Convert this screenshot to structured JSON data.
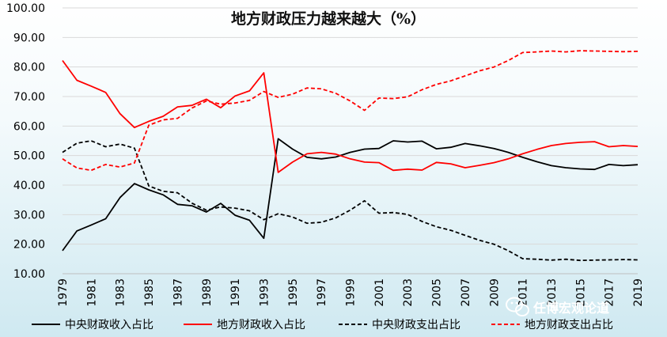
{
  "chart_data": {
    "type": "line",
    "title": "地方财政压力越来越大（%）",
    "ylim": [
      10,
      100
    ],
    "yticks": [
      "10.00",
      "20.00",
      "30.00",
      "40.00",
      "50.00",
      "60.00",
      "70.00",
      "80.00",
      "90.00",
      "100.00"
    ],
    "x": [
      1979,
      1980,
      1981,
      1982,
      1983,
      1984,
      1985,
      1986,
      1987,
      1988,
      1989,
      1990,
      1991,
      1992,
      1993,
      1994,
      1995,
      1996,
      1997,
      1998,
      1999,
      2000,
      2001,
      2002,
      2003,
      2004,
      2005,
      2006,
      2007,
      2008,
      2009,
      2010,
      2011,
      2012,
      2013,
      2014,
      2015,
      2016,
      2017,
      2018,
      2019
    ],
    "xtick_labels": [
      "1979",
      "1981",
      "1983",
      "1985",
      "1987",
      "1989",
      "1991",
      "1993",
      "1995",
      "1997",
      "1999",
      "2001",
      "2003",
      "2005",
      "2007",
      "2009",
      "2011",
      "2013",
      "2015",
      "2017",
      "2019"
    ],
    "grid": true,
    "legend_position": "bottom",
    "series": [
      {
        "name": "中央财政收入占比",
        "color": "#000000",
        "dash": "solid",
        "values": [
          17.8,
          24.5,
          26.5,
          28.6,
          35.8,
          40.5,
          38.4,
          36.7,
          33.5,
          33.0,
          30.9,
          33.8,
          29.8,
          28.1,
          22.0,
          55.7,
          52.2,
          49.4,
          48.9,
          49.5,
          51.1,
          52.2,
          52.4,
          55.0,
          54.6,
          54.9,
          52.3,
          52.8,
          54.1,
          53.3,
          52.4,
          51.1,
          49.4,
          47.9,
          46.6,
          45.9,
          45.5,
          45.3,
          47.0,
          46.6,
          46.9
        ]
      },
      {
        "name": "地方财政收入占比",
        "color": "#ff0000",
        "dash": "solid",
        "values": [
          82.2,
          75.5,
          73.5,
          71.4,
          64.2,
          59.5,
          61.6,
          63.3,
          66.5,
          67.0,
          69.1,
          66.2,
          70.2,
          71.9,
          78.0,
          44.3,
          47.8,
          50.6,
          51.1,
          50.5,
          48.9,
          47.8,
          47.6,
          45.0,
          45.4,
          45.1,
          47.7,
          47.2,
          45.9,
          46.7,
          47.6,
          48.9,
          50.6,
          52.1,
          53.4,
          54.1,
          54.5,
          54.7,
          53.0,
          53.4,
          53.1
        ]
      },
      {
        "name": "中央财政支出占比",
        "color": "#000000",
        "dash": "dashed",
        "values": [
          51.1,
          54.2,
          55.0,
          53.0,
          53.9,
          52.5,
          39.7,
          37.9,
          37.4,
          33.9,
          31.5,
          32.6,
          32.2,
          31.3,
          28.3,
          30.3,
          29.2,
          27.1,
          27.4,
          28.9,
          31.5,
          34.7,
          30.5,
          30.7,
          30.1,
          27.7,
          25.9,
          24.7,
          23.0,
          21.3,
          20.0,
          17.8,
          15.1,
          14.9,
          14.6,
          14.9,
          14.5,
          14.6,
          14.7,
          14.8,
          14.7
        ]
      },
      {
        "name": "地方财政支出占比",
        "color": "#ff0000",
        "dash": "dashed",
        "values": [
          48.9,
          45.8,
          45.0,
          47.0,
          46.1,
          47.5,
          60.3,
          62.1,
          62.6,
          66.1,
          68.5,
          67.4,
          67.8,
          68.7,
          71.7,
          69.7,
          70.8,
          72.9,
          72.6,
          71.1,
          68.5,
          65.3,
          69.5,
          69.3,
          69.9,
          72.3,
          74.1,
          75.3,
          77.0,
          78.7,
          80.0,
          82.2,
          84.9,
          85.1,
          85.4,
          85.1,
          85.5,
          85.4,
          85.3,
          85.2,
          85.3
        ]
      }
    ]
  },
  "watermark": {
    "icon": "wechat-icon",
    "text": "任博宏观论道"
  }
}
